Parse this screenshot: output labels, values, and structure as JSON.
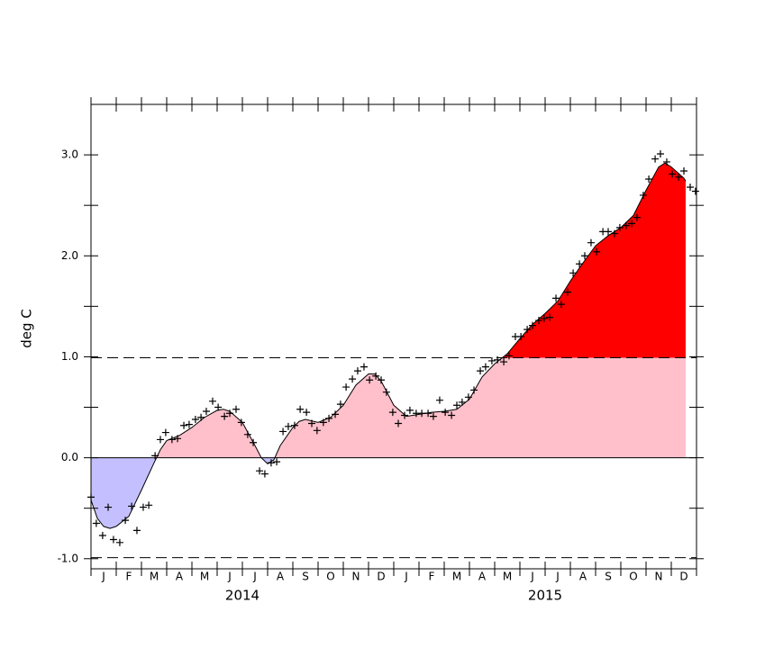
{
  "chart_data": {
    "type": "area",
    "y_label": "deg C",
    "ylim": [
      -1.1,
      3.5
    ],
    "yticks": [
      {
        "value": -1,
        "label": "-1.0"
      },
      {
        "value": 0,
        "label": "0.0"
      },
      {
        "value": 1,
        "label": "1.0"
      },
      {
        "value": 2,
        "label": "2.0"
      },
      {
        "value": 3,
        "label": "3.0"
      }
    ],
    "yminor_ticks": [
      -0.5,
      0.5,
      1.5,
      2.5
    ],
    "xlim": [
      0,
      24
    ],
    "xticks": [
      0,
      1,
      2,
      3,
      4,
      5,
      6,
      7,
      8,
      9,
      10,
      11,
      12,
      13,
      14,
      15,
      16,
      17,
      18,
      19,
      20,
      21,
      22,
      23,
      24
    ],
    "month_labels": [
      "J",
      "F",
      "M",
      "A",
      "M",
      "J",
      "J",
      "A",
      "S",
      "O",
      "N",
      "D",
      "J",
      "F",
      "M",
      "A",
      "M",
      "J",
      "J",
      "A",
      "S",
      "O",
      "N",
      "D"
    ],
    "year_labels": [
      "2014",
      "2015"
    ],
    "reference_lines": [
      0.99,
      -0.99
    ],
    "colors": {
      "below": "#c4c0ff",
      "middle": "#ffc0cb",
      "above": "#ff0000",
      "line": "#000000"
    },
    "line": {
      "x": [
        0,
        0.25,
        0.5,
        0.75,
        1,
        1.5,
        2,
        2.5,
        2.75,
        3,
        3.5,
        4,
        4.5,
        5,
        5.25,
        5.5,
        6,
        6.5,
        6.75,
        7,
        7.25,
        7.5,
        8,
        8.25,
        8.5,
        9,
        9.5,
        10,
        10.5,
        11,
        11.25,
        11.5,
        12,
        12.5,
        13,
        13.5,
        14,
        14.5,
        15,
        15.5,
        16,
        16.5,
        17,
        17.5,
        18,
        18.5,
        19,
        19.5,
        20,
        20.5,
        21,
        21.5,
        22,
        22.5,
        22.75,
        23,
        23.5,
        23.57
      ],
      "values": [
        -0.42,
        -0.6,
        -0.68,
        -0.7,
        -0.68,
        -0.58,
        -0.32,
        -0.05,
        0.08,
        0.17,
        0.22,
        0.3,
        0.4,
        0.47,
        0.48,
        0.46,
        0.35,
        0.12,
        0.0,
        -0.06,
        -0.02,
        0.12,
        0.3,
        0.36,
        0.38,
        0.35,
        0.4,
        0.52,
        0.72,
        0.83,
        0.83,
        0.76,
        0.52,
        0.41,
        0.43,
        0.45,
        0.46,
        0.48,
        0.58,
        0.8,
        0.93,
        1.03,
        1.18,
        1.32,
        1.43,
        1.55,
        1.75,
        1.93,
        2.1,
        2.2,
        2.28,
        2.4,
        2.65,
        2.88,
        2.92,
        2.88,
        2.77,
        2.74
      ]
    },
    "points": {
      "x": [
        0,
        0.21,
        0.46,
        0.68,
        0.89,
        1.14,
        1.36,
        1.61,
        1.82,
        2.07,
        2.29,
        2.54,
        2.75,
        2.96,
        3.21,
        3.43,
        3.68,
        3.89,
        4.14,
        4.36,
        4.57,
        4.82,
        5.04,
        5.29,
        5.5,
        5.75,
        5.96,
        6.21,
        6.43,
        6.68,
        6.89,
        7.14,
        7.36,
        7.61,
        7.82,
        8.07,
        8.29,
        8.54,
        8.75,
        8.96,
        9.21,
        9.43,
        9.68,
        9.89,
        10.11,
        10.36,
        10.57,
        10.82,
        11.04,
        11.29,
        11.5,
        11.71,
        11.96,
        12.18,
        12.43,
        12.64,
        12.89,
        13.11,
        13.36,
        13.57,
        13.82,
        14.04,
        14.29,
        14.5,
        14.71,
        14.96,
        15.18,
        15.43,
        15.64,
        15.89,
        16.11,
        16.36,
        16.57,
        16.82,
        17.04,
        17.29,
        17.5,
        17.75,
        17.96,
        18.18,
        18.43,
        18.64,
        18.89,
        19.11,
        19.36,
        19.57,
        19.82,
        20.04,
        20.29,
        20.5,
        20.75,
        20.96,
        21.21,
        21.43,
        21.64,
        21.89,
        22.11,
        22.36,
        22.57,
        22.82,
        23.04,
        23.29,
        23.5,
        23.75,
        23.96
      ],
      "values": [
        -0.39,
        -0.65,
        -0.77,
        -0.49,
        -0.81,
        -0.84,
        -0.62,
        -0.48,
        -0.72,
        -0.49,
        -0.47,
        0.02,
        0.18,
        0.25,
        0.18,
        0.19,
        0.32,
        0.33,
        0.38,
        0.4,
        0.46,
        0.56,
        0.5,
        0.41,
        0.44,
        0.48,
        0.35,
        0.23,
        0.15,
        -0.13,
        -0.16,
        -0.05,
        -0.04,
        0.26,
        0.31,
        0.32,
        0.48,
        0.45,
        0.34,
        0.27,
        0.35,
        0.39,
        0.43,
        0.53,
        0.7,
        0.78,
        0.86,
        0.9,
        0.77,
        0.81,
        0.77,
        0.65,
        0.45,
        0.34,
        0.42,
        0.47,
        0.44,
        0.44,
        0.44,
        0.41,
        0.57,
        0.45,
        0.42,
        0.52,
        0.55,
        0.6,
        0.67,
        0.86,
        0.9,
        0.96,
        0.97,
        0.95,
        1.01,
        1.2,
        1.2,
        1.27,
        1.31,
        1.36,
        1.38,
        1.39,
        1.58,
        1.52,
        1.64,
        1.83,
        1.92,
        2.0,
        2.13,
        2.04,
        2.24,
        2.24,
        2.22,
        2.28,
        2.3,
        2.32,
        2.38,
        2.6,
        2.76,
        2.96,
        3.01,
        2.93,
        2.81,
        2.78,
        2.84,
        2.68,
        2.64
      ]
    }
  }
}
